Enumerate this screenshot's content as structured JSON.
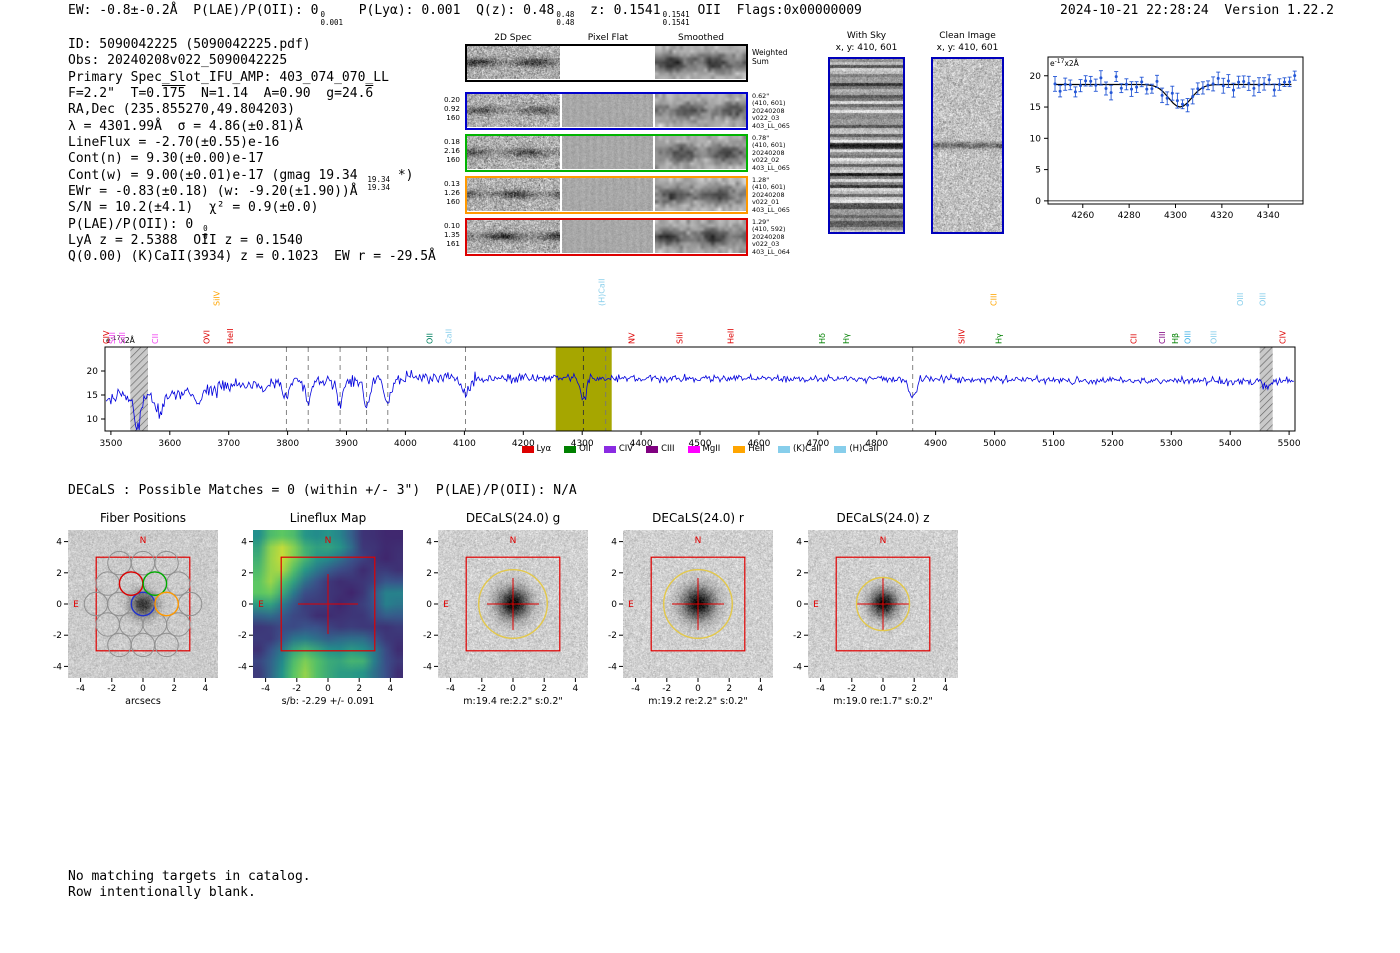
{
  "header": {
    "ew": "EW: -0.8±-0.2Å",
    "plae_label": "P(LAE)/P(OII):",
    "plae_value": "0",
    "plae_sup": "0",
    "plae_sub": "0.001",
    "plya": "P(Lyα): 0.001",
    "qz_label": "Q(z):",
    "qz_value": "0.48",
    "qz_sup": "0.48",
    "qz_sub": "0.48",
    "z_label": "z:",
    "z_value": "0.1541",
    "z_sup": "0.1541",
    "z_sub": "0.1541",
    "z_classification": "OII",
    "flags": "Flags:0x00000009",
    "timestamp": "2024-10-21 22:28:24",
    "version": "Version 1.22.2"
  },
  "info": {
    "line1": "ID: 5090042225 (5090042225.pdf)",
    "line2": "Obs: 20240208v022_5090042225",
    "line3": "Primary Spec_Slot_IFU_AMP: 403_074_070_LL",
    "line4_a": "F=2.2\"  T=0.",
    "line4_ov1": "175",
    "line4_b": "  N=1.14  A=0.90  g=24.",
    "line4_ov2": "6",
    "line5": "RA,Dec (235.855270,49.804203)",
    "line6": "λ = 4301.99Å  σ = 4.86(±0.81)Å",
    "line7": "LineFlux = -2.70(±0.55)e-16",
    "line8": "Cont(n) = 9.30(±0.00)e-17",
    "line9_a": "Cont(w) = 9.00(±0.01)e-17 (gmag 19.34 ",
    "line9_sup": "19.34",
    "line9_sub": "19.34",
    "line9_b": " *)",
    "line10": "EWr = -0.83(±0.18) (w: -9.20(±1.90))Å",
    "line11": "S/N = 10.2(±4.1)  χ² = 0.9(±0.0)",
    "line12_a": "P(LAE)/P(OII): 0 ",
    "line12_sup": "0",
    "line12_sub": "0",
    "line13": "LyA z = 2.5388  OII z = 0.1540",
    "line14": "Q(0.00) (K)CaII(3934) z = 0.1023  EW r = -29.5Å"
  },
  "spec2d": {
    "col_headers": [
      "2D Spec",
      "Pixel Flat",
      "Smoothed"
    ],
    "weighted_label_1": "Weighted",
    "weighted_label_2": "Sum",
    "rows": [
      {
        "color": "#0000cc",
        "left": [
          "0.20",
          "0.92",
          "160"
        ],
        "right": [
          "0.62\"",
          "(410, 601)",
          "20240208",
          "v022_03",
          "403_LL_065"
        ]
      },
      {
        "color": "#00b400",
        "left": [
          "0.18",
          "2.16",
          "160"
        ],
        "right": [
          "0.78\"",
          "(410, 601)",
          "20240208",
          "v022_02",
          "403_LL_065"
        ]
      },
      {
        "color": "#ff9900",
        "left": [
          "0.13",
          "1.26",
          "160"
        ],
        "right": [
          "1.28\"",
          "(410, 601)",
          "20240208",
          "v022_01",
          "403_LL_065"
        ]
      },
      {
        "color": "#dd0000",
        "left": [
          "0.10",
          "1.35",
          "161"
        ],
        "right": [
          "1.29\"",
          "(410, 592)",
          "20240208",
          "v022_03",
          "403_LL_064"
        ]
      }
    ]
  },
  "with_sky": {
    "title": "With Sky",
    "coords": "x, y: 410, 601"
  },
  "clean_image": {
    "title": "Clean Image",
    "coords": "x, y: 410, 601"
  },
  "chart_data": [
    {
      "id": "line-fit-inset",
      "type": "scatter",
      "title": "",
      "ylabel": "e-17x2Å",
      "xlim": [
        4245,
        4355
      ],
      "ylim": [
        -0.5,
        23
      ],
      "xticks": [
        4260,
        4280,
        4300,
        4320,
        4340
      ],
      "yticks": [
        0,
        5,
        10,
        15,
        20
      ],
      "continuum_level": 18.6,
      "fit_gaussian": {
        "center": 4301.99,
        "sigma": 4.86,
        "depth": 3.6
      },
      "points": {
        "x_start": 4248,
        "dx": 2.2,
        "n": 48,
        "noise": 0.7,
        "err_base": 0.7,
        "err_var": 0.5
      },
      "point_color": "#2457d6",
      "fit_color": "#000000",
      "zero_line": 0
    },
    {
      "id": "full-spectrum",
      "type": "line",
      "title": "",
      "ylabel": "e-17x2Å",
      "xlim": [
        3490,
        5510
      ],
      "ylim": [
        7.5,
        25
      ],
      "xticks": [
        3500,
        3600,
        3700,
        3800,
        3900,
        4000,
        4100,
        4200,
        4300,
        4400,
        4500,
        4600,
        4700,
        4800,
        4900,
        5000,
        5100,
        5200,
        5300,
        5400,
        5500
      ],
      "yticks": [
        10,
        15,
        20
      ],
      "line_color": "#0000dd",
      "continuum_anchors": [
        [
          3490,
          14.8
        ],
        [
          3550,
          14.5
        ],
        [
          3620,
          15.2
        ],
        [
          3700,
          17.0
        ],
        [
          3800,
          17.9
        ],
        [
          3900,
          18.1
        ],
        [
          4050,
          18.5
        ],
        [
          4250,
          18.6
        ],
        [
          4500,
          18.4
        ],
        [
          4800,
          18.4
        ],
        [
          5100,
          18.1
        ],
        [
          5400,
          17.9
        ],
        [
          5510,
          17.8
        ]
      ],
      "absorption_features": [
        {
          "center": 3545,
          "depth": 7.0,
          "sigma": 5
        },
        {
          "center": 3583,
          "depth": 4.0,
          "sigma": 6
        },
        {
          "center": 3650,
          "depth": 2.5,
          "sigma": 5
        },
        {
          "center": 3760,
          "depth": 2.0,
          "sigma": 5
        },
        {
          "center": 3798,
          "depth": 3.5,
          "sigma": 5
        },
        {
          "center": 3835,
          "depth": 4.0,
          "sigma": 5
        },
        {
          "center": 3889,
          "depth": 5.0,
          "sigma": 5
        },
        {
          "center": 3934,
          "depth": 5.5,
          "sigma": 5
        },
        {
          "center": 3970,
          "depth": 5.0,
          "sigma": 5
        },
        {
          "center": 4102,
          "depth": 3.5,
          "sigma": 6
        },
        {
          "center": 4302,
          "depth": 4.6,
          "sigma": 4.9
        },
        {
          "center": 4861,
          "depth": 4.2,
          "sigma": 6
        },
        {
          "center": 5460,
          "depth": 1.5,
          "sigma": 4
        }
      ],
      "noise_sigma_blue": 0.85,
      "noise_sigma_red": 0.38,
      "emission_highlight_band": {
        "x0": 4255,
        "x1": 4350,
        "color": "#a6a600"
      },
      "edge_mask_bands": [
        [
          3533,
          3563
        ],
        [
          5450,
          5472
        ]
      ],
      "dashed_lines": {
        "color": "#777777",
        "wavelengths": [
          3798,
          3835,
          3889,
          3934,
          3970,
          4102,
          4340,
          4861
        ]
      },
      "center_dashed_line": {
        "color": "#333333",
        "wavelength": 4302
      },
      "line_labels": [
        {
          "name": "CIV",
          "wl": 3497,
          "color": "#dd0000",
          "tier": 2
        },
        {
          "name": "SiII",
          "wl": 3507,
          "color": "#ee44ee",
          "tier": 2
        },
        {
          "name": "SiII",
          "wl": 3524,
          "color": "#ee44ee",
          "tier": 2
        },
        {
          "name": "CII",
          "wl": 3580,
          "color": "#ee44ee",
          "tier": 2
        },
        {
          "name": "OVI",
          "wl": 3667,
          "color": "#dd0000",
          "tier": 2
        },
        {
          "name": "SiIV",
          "wl": 3684,
          "color": "#ffa500",
          "tier": 1
        },
        {
          "name": "HeII",
          "wl": 3707,
          "color": "#dd0000",
          "tier": 2
        },
        {
          "name": "OII",
          "wl": 4046,
          "color": "#008060",
          "tier": 2
        },
        {
          "name": "CaII",
          "wl": 4078,
          "color": "#87ceeb",
          "tier": 2
        },
        {
          "name": "(H)CaII",
          "wl": 4338,
          "color": "#87ceeb",
          "tier": 1
        },
        {
          "name": "NV",
          "wl": 4389,
          "color": "#dd0000",
          "tier": 2
        },
        {
          "name": "SiII",
          "wl": 4470,
          "color": "#dd0000",
          "tier": 2
        },
        {
          "name": "HeII",
          "wl": 4557,
          "color": "#dd0000",
          "tier": 2
        },
        {
          "name": "Hδ",
          "wl": 4712,
          "color": "#008000",
          "tier": 2
        },
        {
          "name": "Hγ",
          "wl": 4753,
          "color": "#008000",
          "tier": 2
        },
        {
          "name": "SiIV",
          "wl": 4949,
          "color": "#dd0000",
          "tier": 2
        },
        {
          "name": "CIII",
          "wl": 5003,
          "color": "#ffa500",
          "tier": 1
        },
        {
          "name": "Hγ",
          "wl": 5012,
          "color": "#008000",
          "tier": 2
        },
        {
          "name": "CII",
          "wl": 5241,
          "color": "#dd0000",
          "tier": 2
        },
        {
          "name": "CIII",
          "wl": 5289,
          "color": "#800080",
          "tier": 2
        },
        {
          "name": "Hβ",
          "wl": 5311,
          "color": "#008000",
          "tier": 2
        },
        {
          "name": "OIII",
          "wl": 5333,
          "color": "#46b4e7",
          "tier": 2
        },
        {
          "name": "OIII",
          "wl": 5377,
          "color": "#87ceeb",
          "tier": 2
        },
        {
          "name": "OIII",
          "wl": 5422,
          "color": "#87ceeb",
          "tier": 1
        },
        {
          "name": "OIII",
          "wl": 5460,
          "color": "#87ceeb",
          "tier": 1
        },
        {
          "name": "CIV",
          "wl": 5494,
          "color": "#dd0000",
          "tier": 2
        }
      ],
      "legend": [
        {
          "label": "Lyα",
          "color": "#dd0000"
        },
        {
          "label": "OII",
          "color": "#008000"
        },
        {
          "label": "CIV",
          "color": "#8a2be2"
        },
        {
          "label": "CIII",
          "color": "#800080"
        },
        {
          "label": "MgII",
          "color": "#ff00ff"
        },
        {
          "label": "HeII",
          "color": "#ffa500"
        },
        {
          "label": "(K)CaII",
          "color": "#87ceeb"
        },
        {
          "label": "(H)CaII",
          "color": "#87ceeb"
        }
      ]
    }
  ],
  "cutouts": {
    "header": "DECaLS : Possible Matches = 0 (within +/- 3\")  P(LAE)/P(OII): N/A",
    "axis_ticks": [
      -4,
      -2,
      0,
      2,
      4
    ],
    "north_label": "N",
    "east_label": "E",
    "panels": [
      {
        "title": "Fiber Positions",
        "xlabel": "arcsecs",
        "kind": "fibers"
      },
      {
        "title": "Lineflux Map",
        "xlabel": "s/b: -2.29 +/- 0.091",
        "kind": "lineflux"
      },
      {
        "title": "DECaLS(24.0) g",
        "xlabel": "m:19.4 re:2.2\" s:0.2\"",
        "kind": "image",
        "aperture_radius_arcsec": 2.2
      },
      {
        "title": "DECaLS(24.0) r",
        "xlabel": "m:19.2 re:2.2\" s:0.2\"",
        "kind": "image",
        "aperture_radius_arcsec": 2.2
      },
      {
        "title": "DECaLS(24.0) z",
        "xlabel": "m:19.0 re:1.7\" s:0.2\"",
        "kind": "image",
        "aperture_radius_arcsec": 1.7
      }
    ],
    "colored_fibers": [
      {
        "dx": 0,
        "dy": 0,
        "color": "#2233cc"
      },
      {
        "dx": -0.76,
        "dy": 1.31,
        "color": "#dd0000"
      },
      {
        "dx": 0.76,
        "dy": 1.31,
        "color": "#00aa00"
      },
      {
        "dx": 1.51,
        "dy": 0,
        "color": "#ff9900"
      }
    ]
  },
  "footer": {
    "line1": "No matching targets in catalog.",
    "line2": "Row intentionally blank."
  }
}
